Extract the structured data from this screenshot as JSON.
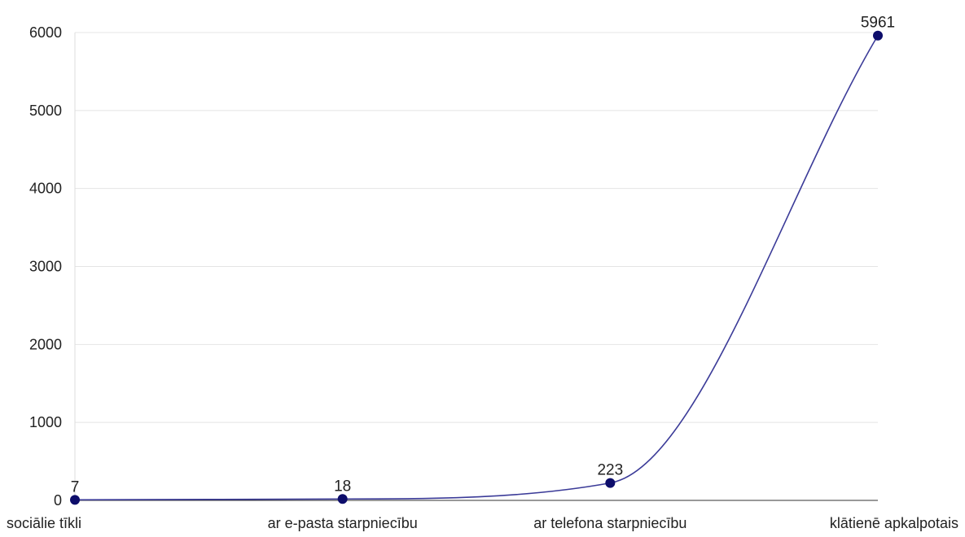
{
  "chart_data": {
    "type": "line",
    "categories": [
      "sociālie tīkli",
      "ar e-pasta starpniecību",
      "ar telefona starpniecību",
      "klātienē apkalpotais"
    ],
    "series": [
      {
        "values": [
          7,
          18,
          223,
          5961
        ]
      }
    ],
    "data_labels": [
      "7",
      "18",
      "223",
      "5961"
    ],
    "y_ticks": [
      0,
      1000,
      2000,
      3000,
      4000,
      5000,
      6000
    ],
    "y_tick_labels": [
      "0",
      "1000",
      "2000",
      "3000",
      "4000",
      "5000",
      "6000"
    ],
    "ylim": [
      0,
      6000
    ],
    "grid": true,
    "smooth": true,
    "colors": {
      "line": "#3b3b98",
      "marker": "#0d0d6b",
      "grid": "#e4e4e4",
      "text": "#222222"
    }
  }
}
